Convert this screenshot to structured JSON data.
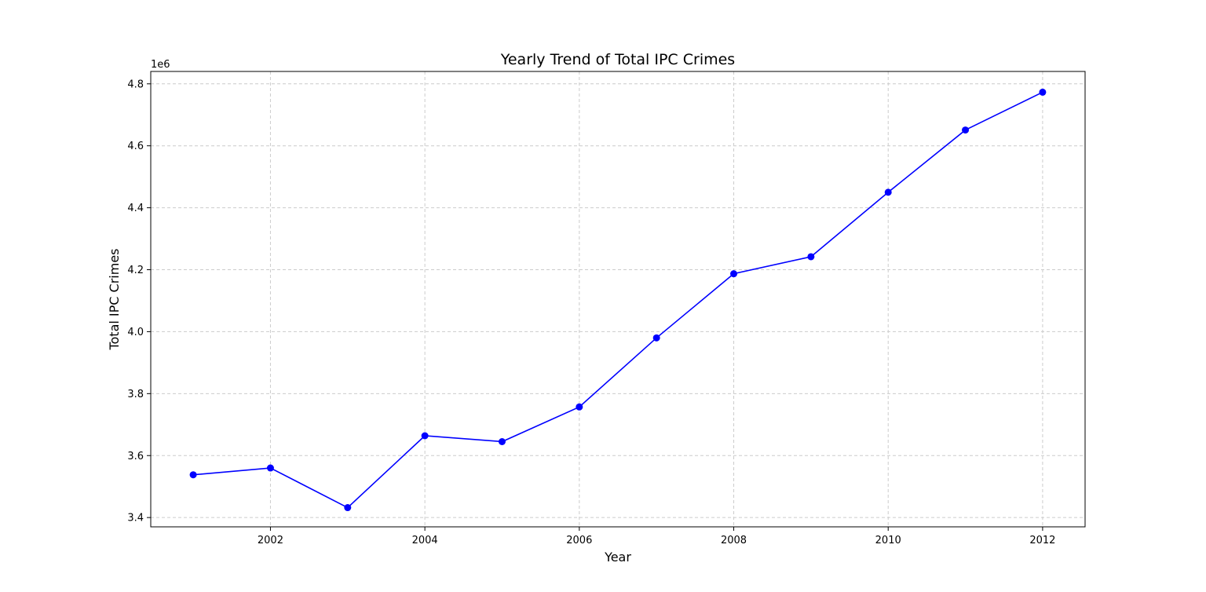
{
  "chart_data": {
    "type": "line",
    "title": "Yearly Trend of Total IPC Crimes",
    "xlabel": "Year",
    "ylabel": "Total IPC Crimes",
    "y_offset_text": "1e6",
    "x": [
      2001,
      2002,
      2003,
      2004,
      2005,
      2006,
      2007,
      2008,
      2009,
      2010,
      2011,
      2012
    ],
    "values": [
      3538000,
      3560000,
      3432000,
      3664000,
      3645000,
      3757000,
      3980000,
      4187000,
      4242000,
      4450000,
      4651000,
      4773000
    ],
    "xlim": [
      2000.45,
      2012.55
    ],
    "ylim": [
      3370000,
      4840000
    ],
    "xticks": [
      2002,
      2004,
      2006,
      2008,
      2010,
      2012
    ],
    "xtick_labels": [
      "2002",
      "2004",
      "2006",
      "2008",
      "2010",
      "2012"
    ],
    "yticks": [
      3400000,
      3600000,
      3800000,
      4000000,
      4200000,
      4400000,
      4600000,
      4800000
    ],
    "ytick_labels": [
      "3.4",
      "3.6",
      "3.8",
      "4.0",
      "4.2",
      "4.4",
      "4.6",
      "4.8"
    ],
    "grid": true,
    "line_color": "#0000ff",
    "marker": "circle"
  }
}
